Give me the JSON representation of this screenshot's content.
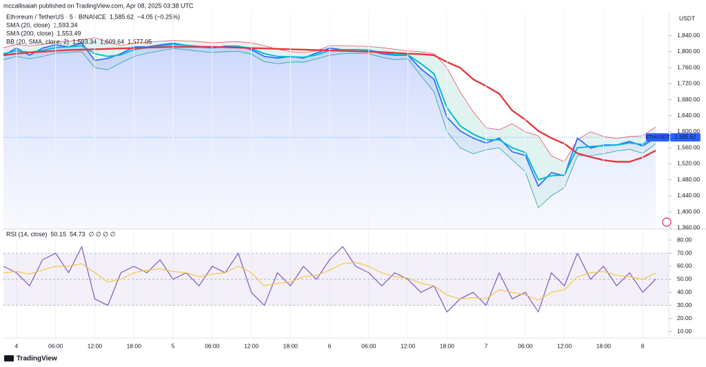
{
  "published_note": "mccallisaiah published on TradingView.com, Apr 08, 2025 03:38 UTC",
  "brand": "TradingView",
  "chart_data": [
    {
      "type": "line",
      "y_axis_label": "USDT",
      "price_tag": "ETHUSDT",
      "xlim": [
        -2,
        100
      ],
      "ylim": [
        1357,
        1898
      ],
      "yticks": [
        {
          "value": 1360,
          "label": "1,360.00"
        },
        {
          "value": 1400,
          "label": "1,400.00"
        },
        {
          "value": 1440,
          "label": "1,440.00"
        },
        {
          "value": 1480,
          "label": "1,480.00"
        },
        {
          "value": 1520,
          "label": "1,520.00"
        },
        {
          "value": 1560,
          "label": "1,560.00"
        },
        {
          "value": 1600,
          "label": "1,600.00"
        },
        {
          "value": 1640,
          "label": "1,640.00"
        },
        {
          "value": 1680,
          "label": "1,680.00"
        },
        {
          "value": 1720,
          "label": "1,720.00"
        },
        {
          "value": 1760,
          "label": "1,760.00"
        },
        {
          "value": 1800,
          "label": "1,800.00"
        },
        {
          "value": 1840,
          "label": "1,840.00"
        }
      ],
      "x": [
        -2,
        0,
        2,
        4,
        6,
        8,
        10,
        12,
        14,
        16,
        18,
        20,
        22,
        24,
        26,
        28,
        30,
        32,
        34,
        36,
        38,
        40,
        42,
        44,
        46,
        48,
        50,
        52,
        54,
        56,
        58,
        60,
        62,
        64,
        66,
        68,
        70,
        72,
        74,
        76,
        78,
        80,
        82,
        84,
        86,
        88,
        90,
        92,
        94,
        96,
        98
      ],
      "series": [
        {
          "name": "Ethereum / TetherUS · 5 · BINANCE",
          "legend_values": [
            "1,585.62",
            "−4.05 (−0.25%)"
          ],
          "color": "#2962ff",
          "area": true,
          "width": 1.6,
          "values": [
            1791,
            1809,
            1791,
            1809,
            1817,
            1812,
            1822,
            1778,
            1783,
            1795,
            1812,
            1812,
            1817,
            1821,
            1816,
            1812,
            1809,
            1814,
            1814,
            1805,
            1788,
            1784,
            1788,
            1784,
            1797,
            1809,
            1805,
            1805,
            1803,
            1795,
            1791,
            1791,
            1757,
            1731,
            1636,
            1602,
            1584,
            1572,
            1584,
            1550,
            1541,
            1464,
            1498,
            1490,
            1584,
            1559,
            1567,
            1567,
            1576,
            1564,
            1586
          ]
        },
        {
          "name": "SMA (20, close)",
          "legend_values": [
            "1,593.34"
          ],
          "color": "#00bcd4",
          "width": 2,
          "values": [
            1795,
            1802,
            1798,
            1803,
            1810,
            1812,
            1815,
            1795,
            1788,
            1792,
            1805,
            1810,
            1814,
            1818,
            1816,
            1813,
            1810,
            1812,
            1813,
            1808,
            1795,
            1788,
            1787,
            1786,
            1792,
            1803,
            1805,
            1805,
            1804,
            1798,
            1793,
            1792,
            1770,
            1745,
            1660,
            1615,
            1594,
            1580,
            1580,
            1560,
            1548,
            1480,
            1490,
            1492,
            1560,
            1563,
            1565,
            1567,
            1572,
            1568,
            1593
          ]
        },
        {
          "name": "SMA (200, close)",
          "legend_values": [
            "1,553.49"
          ],
          "color": "#e0393e",
          "width": 2.4,
          "values": [
            1791,
            1795,
            1798,
            1800,
            1802,
            1804,
            1805,
            1806,
            1807,
            1808,
            1809,
            1810,
            1811,
            1812,
            1812,
            1812,
            1812,
            1811,
            1810,
            1809,
            1808,
            1807,
            1806,
            1805,
            1804,
            1803,
            1802,
            1801,
            1800,
            1799,
            1797,
            1795,
            1794,
            1791,
            1774,
            1760,
            1731,
            1714,
            1695,
            1653,
            1630,
            1602,
            1584,
            1570,
            1546,
            1537,
            1529,
            1525,
            1525,
            1536,
            1553
          ]
        }
      ],
      "bands": {
        "name": "BB (20, SMA, close, 2)",
        "legend_values": [
          "1,593.34",
          "1,609.64",
          "1,577.05"
        ],
        "fill": "rgba(8,153,129,0.12)",
        "upper": {
          "color": "#f23645",
          "values": [
            1810,
            1818,
            1815,
            1818,
            1824,
            1826,
            1830,
            1835,
            1825,
            1815,
            1822,
            1824,
            1826,
            1828,
            1827,
            1825,
            1822,
            1824,
            1825,
            1822,
            1815,
            1806,
            1800,
            1798,
            1802,
            1815,
            1815,
            1814,
            1813,
            1810,
            1806,
            1802,
            1800,
            1795,
            1760,
            1700,
            1650,
            1610,
            1605,
            1620,
            1600,
            1590,
            1540,
            1525,
            1580,
            1600,
            1588,
            1583,
            1588,
            1590,
            1612
          ]
        },
        "lower": {
          "color": "#089981",
          "values": [
            1780,
            1788,
            1782,
            1788,
            1796,
            1798,
            1800,
            1760,
            1755,
            1772,
            1788,
            1796,
            1802,
            1808,
            1805,
            1801,
            1798,
            1800,
            1801,
            1794,
            1775,
            1770,
            1774,
            1774,
            1782,
            1791,
            1795,
            1796,
            1795,
            1786,
            1780,
            1782,
            1740,
            1700,
            1600,
            1560,
            1545,
            1555,
            1560,
            1530,
            1500,
            1410,
            1440,
            1460,
            1540,
            1540,
            1545,
            1552,
            1556,
            1546,
            1570
          ]
        }
      }
    },
    {
      "type": "line",
      "title": "RSI (14, close)",
      "extra": "∅ ∅ ∅ ∅",
      "xlim": [
        -2,
        100
      ],
      "ylim": [
        5,
        88
      ],
      "yticks": [
        {
          "value": 10,
          "label": "10.00"
        },
        {
          "value": 20,
          "label": "20.00"
        },
        {
          "value": 30,
          "label": "30.00"
        },
        {
          "value": 40,
          "label": "40.00"
        },
        {
          "value": 50,
          "label": "50.00"
        },
        {
          "value": 60,
          "label": "60.00"
        },
        {
          "value": 70,
          "label": "70.00"
        },
        {
          "value": 80,
          "label": "80.00"
        }
      ],
      "bands": [
        70,
        50,
        30
      ],
      "xticks": [
        {
          "value": 0,
          "label": "4"
        },
        {
          "value": 6,
          "label": "06:00"
        },
        {
          "value": 12,
          "label": "12:00"
        },
        {
          "value": 18,
          "label": "18:00"
        },
        {
          "value": 24,
          "label": "5"
        },
        {
          "value": 30,
          "label": "06:00"
        },
        {
          "value": 36,
          "label": "12:00"
        },
        {
          "value": 42,
          "label": "18:00"
        },
        {
          "value": 48,
          "label": "6"
        },
        {
          "value": 54,
          "label": "06:00"
        },
        {
          "value": 60,
          "label": "12:00"
        },
        {
          "value": 66,
          "label": "18:00"
        },
        {
          "value": 72,
          "label": "7"
        },
        {
          "value": 78,
          "label": "06:00"
        },
        {
          "value": 84,
          "label": "12:00"
        },
        {
          "value": 90,
          "label": "18:00"
        },
        {
          "value": 96,
          "label": "8"
        }
      ],
      "x": [
        -2,
        0,
        2,
        4,
        6,
        8,
        10,
        12,
        14,
        16,
        18,
        20,
        22,
        24,
        26,
        28,
        30,
        32,
        34,
        36,
        38,
        40,
        42,
        44,
        46,
        48,
        50,
        52,
        54,
        56,
        58,
        60,
        62,
        64,
        66,
        68,
        70,
        72,
        74,
        76,
        78,
        80,
        82,
        84,
        86,
        88,
        90,
        92,
        94,
        96,
        98
      ],
      "series": [
        {
          "name": "50.15",
          "color": "#7e57c2",
          "width": 1.2,
          "values": [
            60,
            55,
            45,
            65,
            70,
            55,
            75,
            35,
            30,
            55,
            60,
            55,
            65,
            50,
            55,
            45,
            60,
            55,
            70,
            40,
            30,
            55,
            45,
            60,
            50,
            65,
            75,
            60,
            55,
            45,
            55,
            50,
            40,
            45,
            25,
            35,
            40,
            30,
            55,
            35,
            40,
            25,
            55,
            45,
            70,
            50,
            60,
            45,
            55,
            40,
            50.15
          ]
        },
        {
          "name": "54.73",
          "color": "#f5c542",
          "width": 1.2,
          "values": [
            55,
            56,
            54,
            57,
            60,
            60,
            62,
            55,
            48,
            50,
            55,
            57,
            58,
            56,
            55,
            52,
            54,
            55,
            60,
            55,
            45,
            47,
            48,
            52,
            53,
            57,
            62,
            63,
            60,
            55,
            52,
            51,
            47,
            45,
            38,
            35,
            36,
            35,
            42,
            40,
            38,
            34,
            40,
            42,
            52,
            55,
            56,
            53,
            52,
            50,
            54.73
          ]
        }
      ]
    }
  ]
}
